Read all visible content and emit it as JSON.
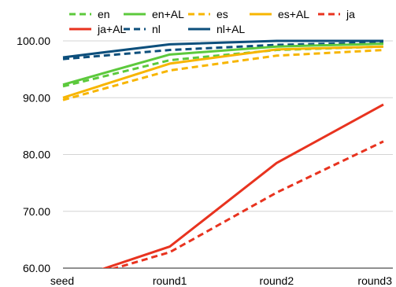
{
  "chart_data": {
    "type": "line",
    "title": "",
    "xlabel": "",
    "ylabel": "",
    "categories": [
      "seed",
      "round1",
      "round2",
      "round3"
    ],
    "ylim": [
      60,
      100
    ],
    "yticks": [
      "60.00",
      "70.00",
      "80.00",
      "90.00",
      "100.00"
    ],
    "grid": "horizontal",
    "legend_position": "top",
    "series": [
      {
        "name": "en",
        "color": "#5cc93c",
        "dash": "dashed",
        "values": [
          92.0,
          96.6,
          98.4,
          99.0
        ]
      },
      {
        "name": "en+AL",
        "color": "#5cc93c",
        "dash": "solid",
        "values": [
          92.3,
          97.6,
          99.0,
          99.5
        ]
      },
      {
        "name": "es",
        "color": "#f7b500",
        "dash": "dashed",
        "values": [
          89.6,
          94.8,
          97.4,
          98.4
        ]
      },
      {
        "name": "es+AL",
        "color": "#f7b500",
        "dash": "solid",
        "values": [
          90.0,
          96.0,
          98.5,
          99.0
        ]
      },
      {
        "name": "ja",
        "color": "#e8331f",
        "dash": "dashed",
        "values": [
          57.3,
          62.8,
          73.3,
          82.3
        ]
      },
      {
        "name": "ja+AL",
        "color": "#e8331f",
        "dash": "solid",
        "values": [
          57.5,
          63.8,
          78.5,
          88.8
        ]
      },
      {
        "name": "nl",
        "color": "#0d4f7c",
        "dash": "dashed",
        "values": [
          96.8,
          98.4,
          99.3,
          99.7
        ]
      },
      {
        "name": "nl+AL",
        "color": "#0d4f7c",
        "dash": "solid",
        "values": [
          97.1,
          99.4,
          100.0,
          100.0
        ]
      }
    ]
  }
}
